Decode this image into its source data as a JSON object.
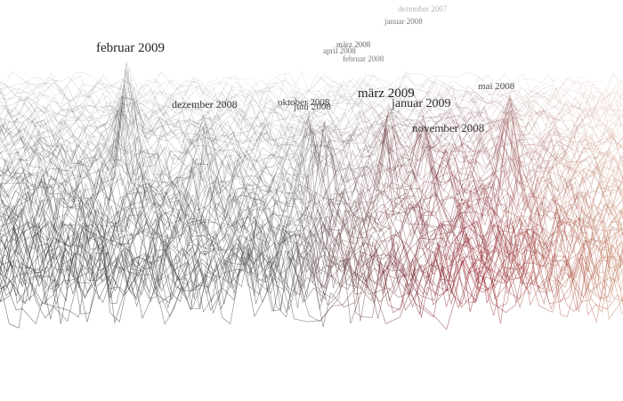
{
  "labels": [
    {
      "text": "februar 2009"
    },
    {
      "text": "dezember 2008"
    },
    {
      "text": "oktober 2008"
    },
    {
      "text": "juni 2008"
    },
    {
      "text": "märz 2009"
    },
    {
      "text": "januar 2009"
    },
    {
      "text": "november 2008"
    },
    {
      "text": "mai 2008"
    },
    {
      "text": "märz 2008"
    },
    {
      "text": "april 2008"
    },
    {
      "text": "februar 2008"
    },
    {
      "text": "januar 2008"
    },
    {
      "text": "dezember 2007"
    }
  ]
}
